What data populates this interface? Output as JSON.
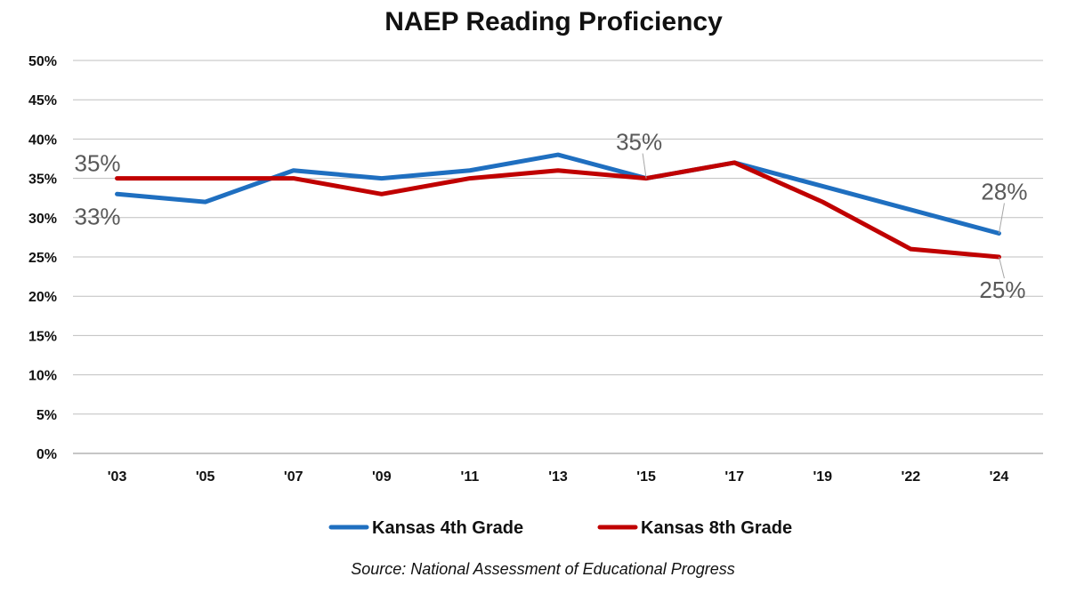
{
  "chart_data": {
    "type": "line",
    "title": "NAEP Reading Proficiency",
    "xlabel": "",
    "ylabel": "",
    "categories": [
      "'03",
      "'05",
      "'07",
      "'09",
      "'11",
      "'13",
      "'15",
      "'17",
      "'19",
      "'22",
      "'24"
    ],
    "y_ticks": [
      "0%",
      "5%",
      "10%",
      "15%",
      "20%",
      "25%",
      "30%",
      "35%",
      "40%",
      "45%",
      "50%"
    ],
    "ylim": [
      0,
      50
    ],
    "grid": true,
    "legend_position": "bottom",
    "series": [
      {
        "name": "Kansas 4th Grade",
        "color": "#1f6fc0",
        "values": [
          33,
          32,
          36,
          35,
          36,
          38,
          35,
          37,
          34,
          31,
          28
        ],
        "labels": [
          {
            "index": 0,
            "text": "33%",
            "placement": "below"
          },
          {
            "index": 10,
            "text": "28%",
            "placement": "above"
          }
        ]
      },
      {
        "name": "Kansas 8th Grade",
        "color": "#c00000",
        "values": [
          35,
          35,
          35,
          33,
          35,
          36,
          35,
          37,
          32,
          26,
          25
        ],
        "labels": [
          {
            "index": 0,
            "text": "35%",
            "placement": "above"
          },
          {
            "index": 6,
            "text": "35%",
            "placement": "above"
          },
          {
            "index": 10,
            "text": "25%",
            "placement": "below"
          }
        ]
      }
    ],
    "source": "Source: National Assessment of Educational Progress"
  }
}
